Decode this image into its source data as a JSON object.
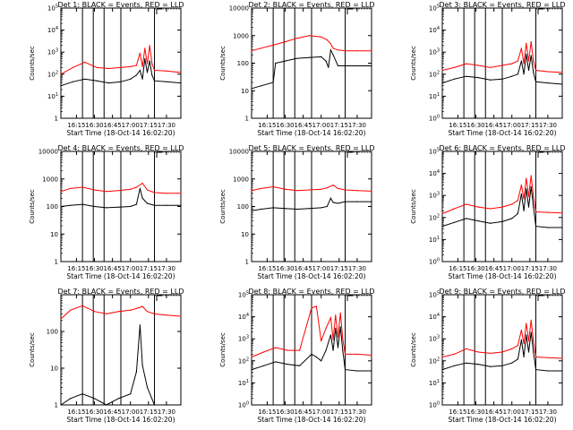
{
  "figure": {
    "background": "#ffffff"
  },
  "chart_data": [
    {
      "type": "line",
      "title": "Det 1: BLACK = Events, RED = LLD",
      "xlabel": "Start Time (18-Oct-14 16:02:20)",
      "ylabel": "Counts/sec",
      "xlim": [
        "16:02",
        "17:42"
      ],
      "ylim": [
        1,
        100000
      ],
      "yscale": "log",
      "xticks": [
        "16:15",
        "16:30",
        "16:45",
        "17:00",
        "17:15",
        "17:30"
      ],
      "yticks": [
        "1",
        "10^1",
        "10^2",
        "10^3",
        "10^4",
        "10^5"
      ],
      "vlines": [
        "16:20",
        "16:29",
        "16:38",
        "16:52",
        "17:20"
      ],
      "inset": {
        "from": "17:20",
        "to": "17:42"
      },
      "series": [
        {
          "color": "#ff0000",
          "x": [
            "16:02",
            "16:12",
            "16:22",
            "16:32",
            "16:42",
            "16:52",
            "17:00",
            "17:05",
            "17:08",
            "17:10",
            "17:12",
            "17:14",
            "17:16",
            "17:18",
            "17:20",
            "17:30",
            "17:42"
          ],
          "values": [
            100,
            200,
            350,
            200,
            180,
            200,
            220,
            250,
            900,
            220,
            1500,
            300,
            2000,
            300,
            150,
            140,
            120
          ]
        },
        {
          "color": "#000000",
          "x": [
            "16:02",
            "16:12",
            "16:22",
            "16:32",
            "16:42",
            "16:52",
            "17:00",
            "17:05",
            "17:08",
            "17:10",
            "17:12",
            "17:14",
            "17:16",
            "17:18",
            "17:20",
            "17:30",
            "17:42"
          ],
          "values": [
            30,
            45,
            60,
            50,
            40,
            45,
            60,
            90,
            150,
            60,
            500,
            120,
            400,
            90,
            50,
            45,
            40
          ]
        }
      ]
    },
    {
      "type": "line",
      "title": "Det 2: BLACK = Events, RED = LLD",
      "xlabel": "Start Time (18-Oct-14 16:02:20)",
      "ylabel": "Counts/sec",
      "xlim": [
        "16:02",
        "17:42"
      ],
      "ylim": [
        1,
        10000
      ],
      "yscale": "log",
      "xticks": [
        "16:15",
        "16:30",
        "16:45",
        "17:00",
        "17:15",
        "17:30"
      ],
      "yticks": [
        "1",
        "10",
        "100",
        "1000",
        "10000"
      ],
      "vlines": [
        "16:20",
        "16:29",
        "16:38",
        "16:52",
        "17:20"
      ],
      "inset": {
        "from": "17:20",
        "to": "17:42"
      },
      "series": [
        {
          "color": "#ff0000",
          "x": [
            "16:02",
            "16:10",
            "16:20",
            "16:30",
            "16:40",
            "16:50",
            "17:00",
            "17:05",
            "17:08",
            "17:10",
            "17:14",
            "17:20",
            "17:30",
            "17:42"
          ],
          "values": [
            280,
            350,
            450,
            600,
            800,
            1000,
            900,
            700,
            500,
            350,
            300,
            280,
            280,
            280
          ]
        },
        {
          "color": "#000000",
          "x": [
            "16:02",
            "16:10",
            "16:20",
            "16:22",
            "16:30",
            "16:40",
            "16:50",
            "17:00",
            "17:04",
            "17:06",
            "17:08",
            "17:10",
            "17:14",
            "17:20",
            "17:30",
            "17:42"
          ],
          "values": [
            12,
            15,
            20,
            100,
            120,
            150,
            160,
            170,
            120,
            70,
            300,
            200,
            80,
            80,
            80,
            80
          ]
        }
      ]
    },
    {
      "type": "line",
      "title": "Det 3: BLACK = Events, RED = LLD",
      "xlabel": "Start Time (18-Oct-14 16:02:20)",
      "ylabel": "Counts/sec",
      "xlim": [
        "16:02",
        "17:42"
      ],
      "ylim": [
        1,
        100000
      ],
      "yscale": "log",
      "xticks": [
        "16:15",
        "16:30",
        "16:45",
        "17:00",
        "17:15",
        "17:30"
      ],
      "yticks": [
        "10^0",
        "10^1",
        "10^2",
        "10^3",
        "10^4",
        "10^5"
      ],
      "vlines": [
        "16:20",
        "16:29",
        "16:38",
        "16:52",
        "17:20"
      ],
      "inset": {
        "from": "17:20",
        "to": "17:42"
      },
      "series": [
        {
          "color": "#ff0000",
          "x": [
            "16:02",
            "16:12",
            "16:22",
            "16:32",
            "16:42",
            "16:52",
            "17:00",
            "17:05",
            "17:08",
            "17:10",
            "17:12",
            "17:14",
            "17:16",
            "17:18",
            "17:20",
            "17:30",
            "17:42"
          ],
          "values": [
            150,
            200,
            300,
            250,
            200,
            250,
            300,
            400,
            1500,
            300,
            2500,
            400,
            3000,
            400,
            150,
            130,
            120
          ]
        },
        {
          "color": "#000000",
          "x": [
            "16:02",
            "16:12",
            "16:22",
            "16:32",
            "16:42",
            "16:52",
            "17:00",
            "17:05",
            "17:08",
            "17:10",
            "17:12",
            "17:14",
            "17:16",
            "17:18",
            "17:20",
            "17:30",
            "17:42"
          ],
          "values": [
            40,
            60,
            80,
            70,
            55,
            60,
            80,
            100,
            400,
            100,
            800,
            150,
            700,
            120,
            45,
            40,
            35
          ]
        }
      ]
    },
    {
      "type": "line",
      "title": "Det 4: BLACK = Events, RED = LLD",
      "xlabel": "Start Time (18-Oct-14 16:02:20)",
      "ylabel": "Counts/sec",
      "xlim": [
        "16:02",
        "17:42"
      ],
      "ylim": [
        1,
        10000
      ],
      "yscale": "log",
      "xticks": [
        "16:15",
        "16:30",
        "16:45",
        "17:00",
        "17:15",
        "17:30"
      ],
      "yticks": [
        "1",
        "10",
        "100",
        "1000",
        "10000"
      ],
      "vlines": [
        "16:20",
        "16:29",
        "16:38",
        "16:52",
        "17:20"
      ],
      "inset": {
        "from": "17:20",
        "to": "17:42"
      },
      "series": [
        {
          "color": "#ff0000",
          "x": [
            "16:02",
            "16:10",
            "16:20",
            "16:30",
            "16:40",
            "16:50",
            "17:00",
            "17:05",
            "17:10",
            "17:14",
            "17:20",
            "17:30",
            "17:42"
          ],
          "values": [
            350,
            450,
            500,
            400,
            350,
            380,
            420,
            500,
            700,
            400,
            320,
            300,
            300
          ]
        },
        {
          "color": "#000000",
          "x": [
            "16:02",
            "16:10",
            "16:20",
            "16:30",
            "16:40",
            "16:50",
            "17:00",
            "17:05",
            "17:08",
            "17:10",
            "17:14",
            "17:20",
            "17:30",
            "17:42"
          ],
          "values": [
            100,
            110,
            120,
            100,
            90,
            95,
            100,
            120,
            450,
            200,
            130,
            110,
            110,
            110
          ]
        }
      ]
    },
    {
      "type": "line",
      "title": "Det 5: BLACK = Events, RED = LLD",
      "xlabel": "Start Time (18-Oct-14 16:02:20)",
      "ylabel": "Counts/sec",
      "xlim": [
        "16:02",
        "17:42"
      ],
      "ylim": [
        1,
        10000
      ],
      "yscale": "log",
      "xticks": [
        "16:15",
        "16:30",
        "16:45",
        "17:00",
        "17:15",
        "17:30"
      ],
      "yticks": [
        "1",
        "10",
        "100",
        "1000",
        "10000"
      ],
      "vlines": [
        "16:20",
        "16:29",
        "16:38",
        "16:52",
        "17:20"
      ],
      "inset": {
        "from": "17:20",
        "to": "17:42"
      },
      "series": [
        {
          "color": "#ff0000",
          "x": [
            "16:02",
            "16:10",
            "16:20",
            "16:30",
            "16:40",
            "16:50",
            "17:00",
            "17:05",
            "17:10",
            "17:14",
            "17:20",
            "17:30",
            "17:42"
          ],
          "values": [
            380,
            450,
            520,
            420,
            380,
            400,
            420,
            480,
            600,
            450,
            400,
            380,
            360
          ]
        },
        {
          "color": "#000000",
          "x": [
            "16:02",
            "16:10",
            "16:20",
            "16:30",
            "16:40",
            "16:50",
            "17:00",
            "17:05",
            "17:08",
            "17:10",
            "17:14",
            "17:20",
            "17:30",
            "17:42"
          ],
          "values": [
            70,
            80,
            90,
            85,
            80,
            85,
            90,
            100,
            200,
            140,
            130,
            150,
            150,
            150
          ]
        }
      ]
    },
    {
      "type": "line",
      "title": "Det 6: BLACK = Events, RED = LLD",
      "xlabel": "Start Time (18-Oct-14 16:02:20)",
      "ylabel": "Counts/sec",
      "xlim": [
        "16:02",
        "17:42"
      ],
      "ylim": [
        1,
        100000
      ],
      "yscale": "log",
      "xticks": [
        "16:15",
        "16:30",
        "16:45",
        "17:00",
        "17:15",
        "17:30"
      ],
      "yticks": [
        "10^0",
        "10^1",
        "10^2",
        "10^3",
        "10^4",
        "10^5"
      ],
      "vlines": [
        "16:20",
        "16:29",
        "16:38",
        "16:52",
        "17:20"
      ],
      "inset": {
        "from": "17:20",
        "to": "17:42"
      },
      "series": [
        {
          "color": "#ff0000",
          "x": [
            "16:02",
            "16:12",
            "16:22",
            "16:32",
            "16:42",
            "16:52",
            "17:00",
            "17:05",
            "17:08",
            "17:10",
            "17:12",
            "17:14",
            "17:16",
            "17:18",
            "17:20",
            "17:30",
            "17:42"
          ],
          "values": [
            150,
            250,
            400,
            300,
            250,
            300,
            400,
            600,
            3000,
            700,
            6000,
            900,
            8000,
            900,
            180,
            170,
            160
          ]
        },
        {
          "color": "#000000",
          "x": [
            "16:02",
            "16:12",
            "16:22",
            "16:32",
            "16:42",
            "16:52",
            "17:00",
            "17:05",
            "17:08",
            "17:10",
            "17:12",
            "17:14",
            "17:16",
            "17:18",
            "17:20",
            "17:30",
            "17:42"
          ],
          "values": [
            40,
            60,
            90,
            70,
            55,
            65,
            90,
            150,
            1200,
            200,
            2000,
            300,
            2500,
            300,
            40,
            35,
            35
          ]
        }
      ]
    },
    {
      "type": "line",
      "title": "Det 7: BLACK = Events, RED = LLD",
      "xlabel": "Start Time (18-Oct-14 16:02:20)",
      "ylabel": "Counts/sec",
      "xlim": [
        "16:02",
        "17:42"
      ],
      "ylim": [
        1,
        1000
      ],
      "yscale": "log",
      "xticks": [
        "16:15",
        "16:30",
        "16:45",
        "17:00",
        "17:15",
        "17:30"
      ],
      "yticks": [
        "1",
        "10",
        "100"
      ],
      "vlines": [
        "16:20",
        "16:29",
        "16:38",
        "16:52",
        "17:20"
      ],
      "inset": {
        "from": "17:20",
        "to": "17:42"
      },
      "series": [
        {
          "color": "#ff0000",
          "x": [
            "16:02",
            "16:10",
            "16:20",
            "16:30",
            "16:40",
            "16:50",
            "17:00",
            "17:05",
            "17:10",
            "17:14",
            "17:20",
            "17:30",
            "17:42"
          ],
          "values": [
            220,
            380,
            500,
            350,
            300,
            350,
            380,
            420,
            480,
            350,
            300,
            280,
            260
          ]
        },
        {
          "color": "#000000",
          "x": [
            "16:02",
            "16:10",
            "16:20",
            "16:30",
            "16:40",
            "16:50",
            "17:00",
            "17:05",
            "17:08",
            "17:10",
            "17:14",
            "17:20",
            "17:30",
            "17:42"
          ],
          "values": [
            1,
            1.5,
            2,
            1.5,
            1,
            1.5,
            2,
            8,
            150,
            12,
            3,
            1,
            1,
            1
          ]
        }
      ]
    },
    {
      "type": "line",
      "title": "Det 8: BLACK = Events, RED = LLD",
      "xlabel": "Start Time (18-Oct-14 16:02:20)",
      "ylabel": "Counts/sec",
      "xlim": [
        "16:02",
        "17:42"
      ],
      "ylim": [
        1,
        100000
      ],
      "yscale": "log",
      "xticks": [
        "16:15",
        "16:30",
        "16:45",
        "17:00",
        "17:15",
        "17:30"
      ],
      "yticks": [
        "10^0",
        "10^1",
        "10^2",
        "10^3",
        "10^4",
        "10^5"
      ],
      "vlines": [
        "16:20",
        "16:29",
        "16:38",
        "16:52",
        "17:20"
      ],
      "inset": {
        "from": "17:20",
        "to": "17:42"
      },
      "series": [
        {
          "color": "#ff0000",
          "x": [
            "16:02",
            "16:12",
            "16:22",
            "16:32",
            "16:42",
            "16:52",
            "16:56",
            "17:00",
            "17:04",
            "17:08",
            "17:10",
            "17:12",
            "17:14",
            "17:16",
            "17:18",
            "17:20",
            "17:30",
            "17:42"
          ],
          "values": [
            150,
            250,
            400,
            300,
            300,
            25000,
            30000,
            800,
            3000,
            9000,
            900,
            12000,
            1200,
            15000,
            1000,
            200,
            200,
            180
          ]
        },
        {
          "color": "#000000",
          "x": [
            "16:02",
            "16:12",
            "16:22",
            "16:32",
            "16:42",
            "16:52",
            "16:56",
            "17:00",
            "17:04",
            "17:08",
            "17:10",
            "17:12",
            "17:14",
            "17:16",
            "17:18",
            "17:20",
            "17:30",
            "17:42"
          ],
          "values": [
            40,
            60,
            90,
            70,
            60,
            200,
            150,
            100,
            300,
            1500,
            300,
            3000,
            400,
            3500,
            300,
            40,
            35,
            35
          ]
        }
      ]
    },
    {
      "type": "line",
      "title": "Det 9: BLACK = Events, RED = LLD",
      "xlabel": "Start Time (18-Oct-14 16:02:20)",
      "ylabel": "Counts/sec",
      "xlim": [
        "16:02",
        "17:42"
      ],
      "ylim": [
        1,
        100000
      ],
      "yscale": "log",
      "xticks": [
        "16:15",
        "16:30",
        "16:45",
        "17:00",
        "17:15",
        "17:30"
      ],
      "yticks": [
        "10^0",
        "10^1",
        "10^2",
        "10^3",
        "10^4",
        "10^5"
      ],
      "vlines": [
        "16:20",
        "16:29",
        "16:38",
        "16:52",
        "17:20"
      ],
      "inset": {
        "from": "17:20",
        "to": "17:42"
      },
      "series": [
        {
          "color": "#ff0000",
          "x": [
            "16:02",
            "16:12",
            "16:22",
            "16:32",
            "16:42",
            "16:52",
            "17:00",
            "17:05",
            "17:08",
            "17:10",
            "17:12",
            "17:14",
            "17:16",
            "17:18",
            "17:20",
            "17:30",
            "17:42"
          ],
          "values": [
            150,
            200,
            350,
            250,
            220,
            250,
            350,
            500,
            2500,
            600,
            5000,
            800,
            7000,
            800,
            150,
            140,
            130
          ]
        },
        {
          "color": "#000000",
          "x": [
            "16:02",
            "16:12",
            "16:22",
            "16:32",
            "16:42",
            "16:52",
            "17:00",
            "17:05",
            "17:08",
            "17:10",
            "17:12",
            "17:14",
            "17:16",
            "17:18",
            "17:20",
            "17:30",
            "17:42"
          ],
          "values": [
            40,
            60,
            80,
            70,
            55,
            60,
            80,
            120,
            900,
            150,
            1500,
            250,
            2000,
            250,
            40,
            35,
            35
          ]
        }
      ]
    }
  ]
}
